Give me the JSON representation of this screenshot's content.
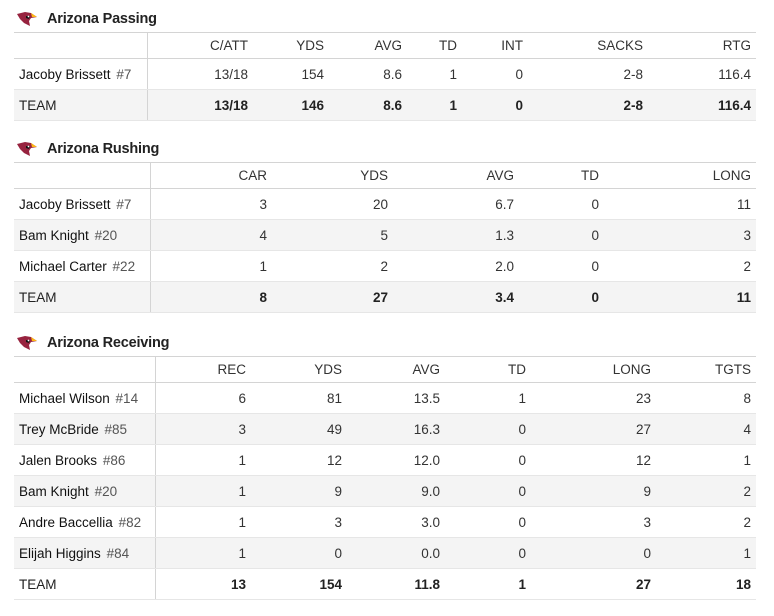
{
  "passing": {
    "title": "Arizona Passing",
    "columns": [
      "C/ATT",
      "YDS",
      "AVG",
      "TD",
      "INT",
      "SACKS",
      "RTG"
    ],
    "rows": [
      {
        "name": "Jacoby Brissett",
        "number": "#7",
        "cells": [
          "13/18",
          "154",
          "8.6",
          "1",
          "0",
          "2-8",
          "116.4"
        ]
      }
    ],
    "team": {
      "label": "TEAM",
      "cells": [
        "13/18",
        "146",
        "8.6",
        "1",
        "0",
        "2-8",
        "116.4"
      ]
    }
  },
  "rushing": {
    "title": "Arizona Rushing",
    "columns": [
      "CAR",
      "YDS",
      "AVG",
      "TD",
      "LONG"
    ],
    "rows": [
      {
        "name": "Jacoby Brissett",
        "number": "#7",
        "cells": [
          "3",
          "20",
          "6.7",
          "0",
          "11"
        ]
      },
      {
        "name": "Bam Knight",
        "number": "#20",
        "cells": [
          "4",
          "5",
          "1.3",
          "0",
          "3"
        ]
      },
      {
        "name": "Michael Carter",
        "number": "#22",
        "cells": [
          "1",
          "2",
          "2.0",
          "0",
          "2"
        ]
      }
    ],
    "team": {
      "label": "TEAM",
      "cells": [
        "8",
        "27",
        "3.4",
        "0",
        "11"
      ]
    }
  },
  "receiving": {
    "title": "Arizona Receiving",
    "columns": [
      "REC",
      "YDS",
      "AVG",
      "TD",
      "LONG",
      "TGTS"
    ],
    "rows": [
      {
        "name": "Michael Wilson",
        "number": "#14",
        "cells": [
          "6",
          "81",
          "13.5",
          "1",
          "23",
          "8"
        ]
      },
      {
        "name": "Trey McBride",
        "number": "#85",
        "cells": [
          "3",
          "49",
          "16.3",
          "0",
          "27",
          "4"
        ]
      },
      {
        "name": "Jalen Brooks",
        "number": "#86",
        "cells": [
          "1",
          "12",
          "12.0",
          "0",
          "12",
          "1"
        ]
      },
      {
        "name": "Bam Knight",
        "number": "#20",
        "cells": [
          "1",
          "9",
          "9.0",
          "0",
          "9",
          "2"
        ]
      },
      {
        "name": "Andre Baccellia",
        "number": "#82",
        "cells": [
          "1",
          "3",
          "3.0",
          "0",
          "3",
          "2"
        ]
      },
      {
        "name": "Elijah Higgins",
        "number": "#84",
        "cells": [
          "1",
          "0",
          "0.0",
          "0",
          "0",
          "1"
        ]
      }
    ],
    "team": {
      "label": "TEAM",
      "cells": [
        "13",
        "154",
        "11.8",
        "1",
        "27",
        "18"
      ]
    }
  },
  "icons": {
    "team_logo": "cardinals-logo-icon"
  },
  "colors": {
    "logo_red": "#97233F",
    "logo_yellow": "#FFB612",
    "row_alt": "#f4f4f4"
  }
}
